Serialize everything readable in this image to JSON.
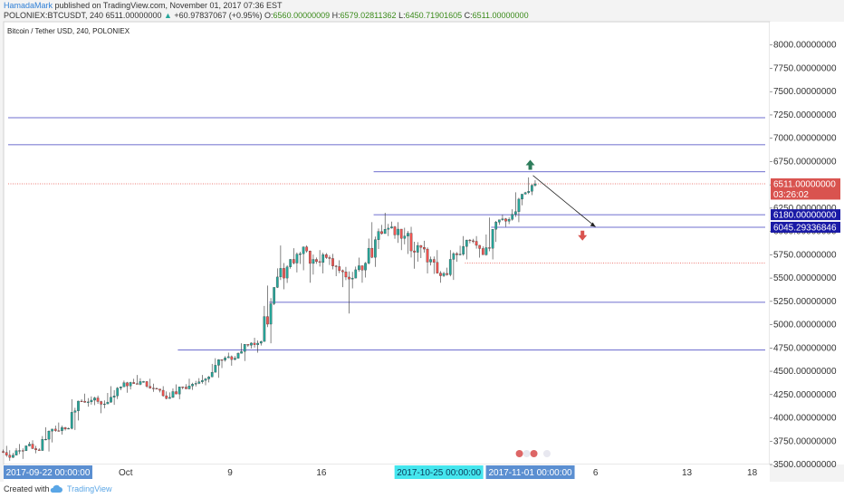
{
  "header": {
    "author": "HamadaMark",
    "published": "published on TradingView.com, November 01, 2017 07:36 EST",
    "symbol": "POLONIEX:BTCUSDT, 240",
    "last": "6511.00000000",
    "arrow": "▲",
    "change": "+60.97837067 (+0.95%)",
    "o_label": "O:",
    "o_value": "6560.00000009",
    "h_label": "H:",
    "h_value": "6579.02811362",
    "l_label": "L:",
    "l_value": "6450.71901605",
    "c_label": "C:",
    "c_value": "6511.00000000"
  },
  "footer": {
    "created_with": "Created with",
    "brand": "TradingView"
  },
  "colors": {
    "up": "#26a69a",
    "down": "#ef5350",
    "hline": "#3f3fbf",
    "dotted": "#e8514a",
    "price_tag": "#d9534f",
    "blue_tag": "#1a1aa6",
    "axis_tag": "#5b8fd1",
    "axis_tag_cyan": "#45e6ee"
  },
  "chart_data": {
    "type": "candlestick",
    "title": "Bitcoin / Tether USD, 240, POLONIEX",
    "ylim": [
      3500,
      8250
    ],
    "y_ticks": [
      3500,
      3750,
      4000,
      4250,
      4500,
      4750,
      5000,
      5250,
      5500,
      5750,
      6000,
      6250,
      6500,
      6750,
      7000,
      7250,
      7500,
      7750,
      8000
    ],
    "y_tick_labels": [
      "3500.00000000",
      "3750.00000000",
      "4000.00000000",
      "4250.00000000",
      "4500.00000000",
      "4750.00000000",
      "5000.00000000",
      "5250.00000000",
      "5500.00000000",
      "5750.00000000",
      "6000.00000000",
      "6250.00000000",
      "6500.00000000",
      "6750.00000000",
      "7000.00000000",
      "7250.00000000",
      "7500.00000000",
      "7750.00000000",
      "8000.00000000"
    ],
    "x_days": [
      "2017-09-22",
      "2017-11-19"
    ],
    "x_ticks": [
      {
        "label": "Oct",
        "day": "2017-10-01"
      },
      {
        "label": "9",
        "day": "2017-10-09"
      },
      {
        "label": "16",
        "day": "2017-10-16"
      },
      {
        "label": "6",
        "day": "2017-11-06"
      },
      {
        "label": "13",
        "day": "2017-11-13"
      },
      {
        "label": "18",
        "day": "2017-11-18"
      }
    ],
    "x_tags": [
      {
        "label": "2017-09-22 00:00:00",
        "day": "2017-09-22",
        "style": "blue"
      },
      {
        "label": "2017-10-25 00:00:00",
        "day": "2017-10-25",
        "style": "cyan"
      },
      {
        "label": "2017-11-01 00:00:00",
        "day": "2017-11-01",
        "style": "blue"
      }
    ],
    "price_tags": [
      {
        "label": "6511.00000000",
        "value": 6511,
        "style": "red"
      },
      {
        "label": "03:26:02",
        "value": 6400,
        "style": "red"
      },
      {
        "label": "6180.00000000",
        "value": 6180,
        "style": "blue"
      },
      {
        "label": "6045.29336846",
        "value": 6045.29336846,
        "style": "blue"
      }
    ],
    "horizontal_lines": [
      {
        "value": 7220,
        "day_start": "2017-09-22",
        "day_end": "2017-11-19"
      },
      {
        "value": 6930,
        "day_start": "2017-09-22",
        "day_end": "2017-11-19"
      },
      {
        "value": 6640,
        "day_start": "2017-10-20",
        "day_end": "2017-11-19"
      },
      {
        "value": 6180,
        "day_start": "2017-10-20",
        "day_end": "2017-11-19"
      },
      {
        "value": 6045.29,
        "day_start": "2017-10-29",
        "day_end": "2017-11-19"
      },
      {
        "value": 5240,
        "day_start": "2017-10-12",
        "day_end": "2017-11-19"
      },
      {
        "value": 4730,
        "day_start": "2017-10-05",
        "day_end": "2017-11-19"
      }
    ],
    "dotted_lines": [
      {
        "value": 6511,
        "day_start": "2017-09-22",
        "day_end": "2017-11-19"
      },
      {
        "value": 5660,
        "day_start": "2017-10-27",
        "day_end": "2017-11-19"
      }
    ],
    "projection": {
      "from": {
        "day": 2017.1101,
        "value": 6600
      },
      "to": {
        "day": 2017.1106,
        "value": 6050
      }
    },
    "arrows": [
      {
        "direction": "up",
        "day": "2017-11-01",
        "value": 6710
      },
      {
        "direction": "down",
        "day": "2017-11-05",
        "value": 5960
      }
    ],
    "candles": [
      {
        "day": "2017-09-22",
        "o": 3640,
        "h": 3700,
        "l": 3540,
        "c": 3600
      },
      {
        "day": "2017-09-23",
        "o": 3600,
        "h": 3720,
        "l": 3560,
        "c": 3700
      },
      {
        "day": "2017-09-24",
        "o": 3700,
        "h": 3760,
        "l": 3620,
        "c": 3650
      },
      {
        "day": "2017-09-25",
        "o": 3650,
        "h": 3900,
        "l": 3640,
        "c": 3880
      },
      {
        "day": "2017-09-26",
        "o": 3880,
        "h": 3950,
        "l": 3820,
        "c": 3880
      },
      {
        "day": "2017-09-27",
        "o": 3880,
        "h": 4200,
        "l": 3870,
        "c": 4180
      },
      {
        "day": "2017-09-28",
        "o": 4180,
        "h": 4260,
        "l": 4120,
        "c": 4190
      },
      {
        "day": "2017-09-29",
        "o": 4190,
        "h": 4240,
        "l": 4050,
        "c": 4150
      },
      {
        "day": "2017-09-30",
        "o": 4150,
        "h": 4340,
        "l": 4140,
        "c": 4320
      },
      {
        "day": "2017-10-01",
        "o": 4320,
        "h": 4400,
        "l": 4270,
        "c": 4380
      },
      {
        "day": "2017-10-02",
        "o": 4380,
        "h": 4460,
        "l": 4350,
        "c": 4390
      },
      {
        "day": "2017-10-03",
        "o": 4390,
        "h": 4420,
        "l": 4280,
        "c": 4310
      },
      {
        "day": "2017-10-04",
        "o": 4310,
        "h": 4340,
        "l": 4200,
        "c": 4220
      },
      {
        "day": "2017-10-05",
        "o": 4220,
        "h": 4360,
        "l": 4200,
        "c": 4330
      },
      {
        "day": "2017-10-06",
        "o": 4330,
        "h": 4420,
        "l": 4300,
        "c": 4370
      },
      {
        "day": "2017-10-07",
        "o": 4370,
        "h": 4460,
        "l": 4350,
        "c": 4440
      },
      {
        "day": "2017-10-08",
        "o": 4440,
        "h": 4640,
        "l": 4430,
        "c": 4620
      },
      {
        "day": "2017-10-09",
        "o": 4620,
        "h": 4700,
        "l": 4560,
        "c": 4640
      },
      {
        "day": "2017-10-10",
        "o": 4640,
        "h": 4800,
        "l": 4610,
        "c": 4780
      },
      {
        "day": "2017-10-11",
        "o": 4780,
        "h": 4860,
        "l": 4700,
        "c": 4820
      },
      {
        "day": "2017-10-12",
        "o": 4820,
        "h": 5420,
        "l": 4800,
        "c": 5400
      },
      {
        "day": "2017-10-13",
        "o": 5400,
        "h": 5850,
        "l": 5380,
        "c": 5620
      },
      {
        "day": "2017-10-14",
        "o": 5620,
        "h": 5820,
        "l": 5560,
        "c": 5760
      },
      {
        "day": "2017-10-15",
        "o": 5760,
        "h": 5850,
        "l": 5450,
        "c": 5700
      },
      {
        "day": "2017-10-16",
        "o": 5700,
        "h": 5800,
        "l": 5550,
        "c": 5720
      },
      {
        "day": "2017-10-17",
        "o": 5720,
        "h": 5760,
        "l": 5520,
        "c": 5580
      },
      {
        "day": "2017-10-18",
        "o": 5580,
        "h": 5620,
        "l": 5120,
        "c": 5500
      },
      {
        "day": "2017-10-19",
        "o": 5500,
        "h": 5720,
        "l": 5450,
        "c": 5660
      },
      {
        "day": "2017-10-20",
        "o": 5660,
        "h": 6100,
        "l": 5620,
        "c": 6000
      },
      {
        "day": "2017-10-21",
        "o": 6000,
        "h": 6200,
        "l": 5950,
        "c": 6050
      },
      {
        "day": "2017-10-22",
        "o": 6050,
        "h": 6100,
        "l": 5800,
        "c": 5950
      },
      {
        "day": "2017-10-23",
        "o": 5950,
        "h": 6050,
        "l": 5600,
        "c": 5850
      },
      {
        "day": "2017-10-24",
        "o": 5850,
        "h": 5900,
        "l": 5550,
        "c": 5700
      },
      {
        "day": "2017-10-25",
        "o": 5700,
        "h": 5800,
        "l": 5450,
        "c": 5550
      },
      {
        "day": "2017-10-26",
        "o": 5550,
        "h": 5800,
        "l": 5480,
        "c": 5750
      },
      {
        "day": "2017-10-27",
        "o": 5750,
        "h": 5950,
        "l": 5700,
        "c": 5900
      },
      {
        "day": "2017-10-28",
        "o": 5900,
        "h": 5950,
        "l": 5720,
        "c": 5750
      },
      {
        "day": "2017-10-29",
        "o": 5750,
        "h": 6150,
        "l": 5700,
        "c": 6100
      },
      {
        "day": "2017-10-30",
        "o": 6100,
        "h": 6180,
        "l": 6050,
        "c": 6130
      },
      {
        "day": "2017-10-31",
        "o": 6130,
        "h": 6420,
        "l": 6100,
        "c": 6400
      },
      {
        "day": "2017-11-01",
        "o": 6400,
        "h": 6580,
        "l": 6390,
        "c": 6511
      }
    ]
  }
}
